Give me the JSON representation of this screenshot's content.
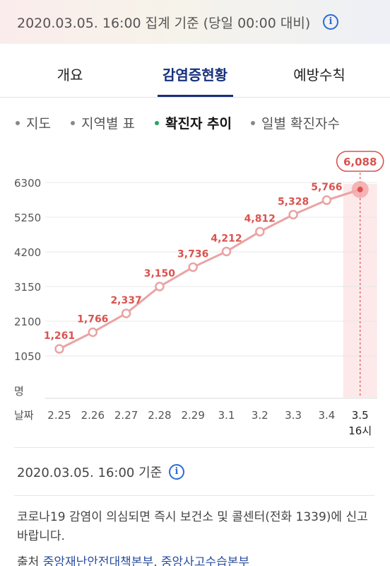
{
  "header": {
    "timestamp": "2020.03.05. 16:00 집계 기준 (당일 00:00 대비)"
  },
  "tabs": [
    {
      "label": "개요",
      "active": false
    },
    {
      "label": "감염증현황",
      "active": true
    },
    {
      "label": "예방수칙",
      "active": false
    }
  ],
  "subtabs": [
    {
      "label": "지도",
      "active": false
    },
    {
      "label": "지역별 표",
      "active": false
    },
    {
      "label": "확진자 추이",
      "active": true
    },
    {
      "label": "일별 확진자수",
      "active": false
    }
  ],
  "chart_data": {
    "type": "line",
    "categories": [
      "2.25",
      "2.26",
      "2.27",
      "2.28",
      "2.29",
      "3.1",
      "3.2",
      "3.3",
      "3.4",
      "3.5"
    ],
    "category_sublabels": [
      "",
      "",
      "",
      "",
      "",
      "",
      "",
      "",
      "",
      "16시"
    ],
    "values": [
      1261,
      1766,
      2337,
      3150,
      3736,
      4212,
      4812,
      5328,
      5766,
      6088
    ],
    "value_labels": [
      "1,261",
      "1,766",
      "2,337",
      "3,150",
      "3,736",
      "4,212",
      "4,812",
      "5,328",
      "5,766",
      "6,088"
    ],
    "y_ticks": [
      "1050",
      "2100",
      "3150",
      "4200",
      "5250",
      "6300"
    ],
    "ylim": [
      0,
      6300
    ],
    "ylabel": "명",
    "xlabel": "날짜",
    "highlight_index": 9,
    "grid": true,
    "line_color": "#eaa3a3",
    "label_color": "#d9534f"
  },
  "basis": "2020.03.05. 16:00 기준",
  "notice": "코로나19 감염이 의심되면 즉시 보건소 및 콜센터(전화 1339)에 신고바랍니다.",
  "source": {
    "prefix": "출처",
    "link1": "중앙재난안전대책본부",
    "link2": "중앙사고수습본부"
  }
}
